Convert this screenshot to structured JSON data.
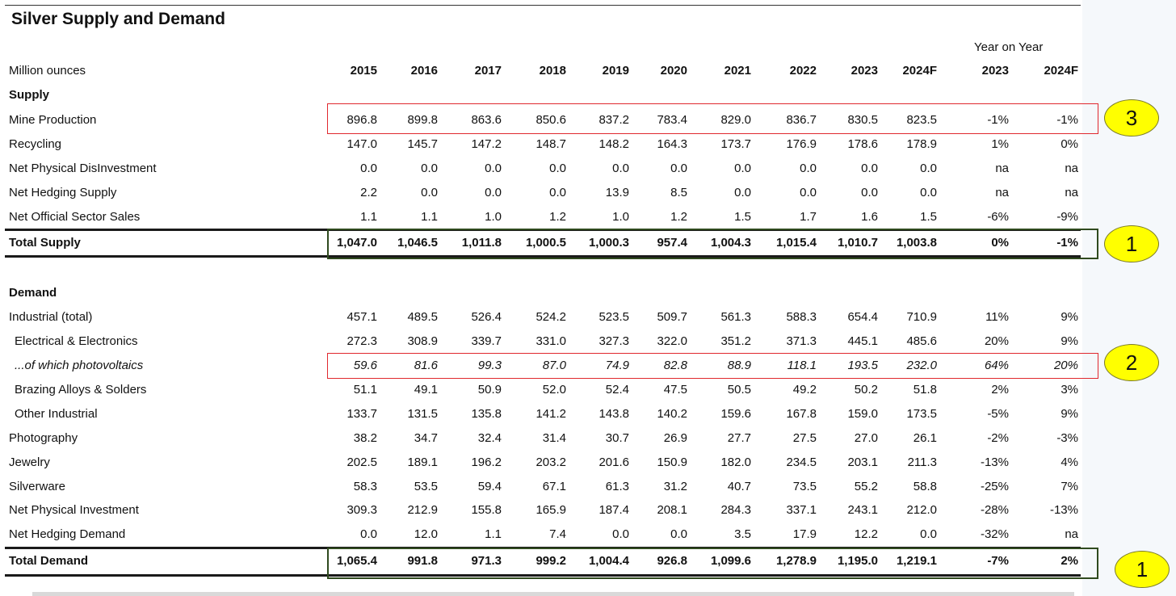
{
  "title": "Silver Supply and Demand",
  "yoy_label": "Year on Year",
  "header": {
    "unit": "Million ounces",
    "years": [
      "2015",
      "2016",
      "2017",
      "2018",
      "2019",
      "2020",
      "2021",
      "2022",
      "2023",
      "2024F"
    ],
    "yoy": [
      "2023",
      "2024F"
    ]
  },
  "sections": {
    "supply": "Supply",
    "demand": "Demand"
  },
  "rows": {
    "mine_production": {
      "label": "Mine Production",
      "values": [
        "896.8",
        "899.8",
        "863.6",
        "850.6",
        "837.2",
        "783.4",
        "829.0",
        "836.7",
        "830.5",
        "823.5"
      ],
      "yoy": [
        "-1%",
        "-1%"
      ]
    },
    "recycling": {
      "label": "Recycling",
      "values": [
        "147.0",
        "145.7",
        "147.2",
        "148.7",
        "148.2",
        "164.3",
        "173.7",
        "176.9",
        "178.6",
        "178.9"
      ],
      "yoy": [
        "1%",
        "0%"
      ]
    },
    "net_physical_disinvestment": {
      "label": "Net Physical DisInvestment",
      "values": [
        "0.0",
        "0.0",
        "0.0",
        "0.0",
        "0.0",
        "0.0",
        "0.0",
        "0.0",
        "0.0",
        "0.0"
      ],
      "yoy": [
        "na",
        "na"
      ]
    },
    "net_hedging_supply": {
      "label": "Net Hedging Supply",
      "values": [
        "2.2",
        "0.0",
        "0.0",
        "0.0",
        "13.9",
        "8.5",
        "0.0",
        "0.0",
        "0.0",
        "0.0"
      ],
      "yoy": [
        "na",
        "na"
      ]
    },
    "net_official_sector_sales": {
      "label": "Net Official Sector Sales",
      "values": [
        "1.1",
        "1.1",
        "1.0",
        "1.2",
        "1.0",
        "1.2",
        "1.5",
        "1.7",
        "1.6",
        "1.5"
      ],
      "yoy": [
        "-6%",
        "-9%"
      ]
    },
    "total_supply": {
      "label": "Total Supply",
      "values": [
        "1,047.0",
        "1,046.5",
        "1,011.8",
        "1,000.5",
        "1,000.3",
        "957.4",
        "1,004.3",
        "1,015.4",
        "1,010.7",
        "1,003.8"
      ],
      "yoy": [
        "0%",
        "-1%"
      ]
    },
    "industrial_total": {
      "label": "Industrial (total)",
      "values": [
        "457.1",
        "489.5",
        "526.4",
        "524.2",
        "523.5",
        "509.7",
        "561.3",
        "588.3",
        "654.4",
        "710.9"
      ],
      "yoy": [
        "11%",
        "9%"
      ]
    },
    "electrical_electronics": {
      "label": "Electrical & Electronics",
      "values": [
        "272.3",
        "308.9",
        "339.7",
        "331.0",
        "327.3",
        "322.0",
        "351.2",
        "371.3",
        "445.1",
        "485.6"
      ],
      "yoy": [
        "20%",
        "9%"
      ]
    },
    "photovoltaics": {
      "label": "...of which photovoltaics",
      "values": [
        "59.6",
        "81.6",
        "99.3",
        "87.0",
        "74.9",
        "82.8",
        "88.9",
        "118.1",
        "193.5",
        "232.0"
      ],
      "yoy": [
        "64%",
        "20%"
      ]
    },
    "brazing_alloys": {
      "label": "Brazing Alloys & Solders",
      "values": [
        "51.1",
        "49.1",
        "50.9",
        "52.0",
        "52.4",
        "47.5",
        "50.5",
        "49.2",
        "50.2",
        "51.8"
      ],
      "yoy": [
        "2%",
        "3%"
      ]
    },
    "other_industrial": {
      "label": "Other Industrial",
      "values": [
        "133.7",
        "131.5",
        "135.8",
        "141.2",
        "143.8",
        "140.2",
        "159.6",
        "167.8",
        "159.0",
        "173.5"
      ],
      "yoy": [
        "-5%",
        "9%"
      ]
    },
    "photography": {
      "label": "Photography",
      "values": [
        "38.2",
        "34.7",
        "32.4",
        "31.4",
        "30.7",
        "26.9",
        "27.7",
        "27.5",
        "27.0",
        "26.1"
      ],
      "yoy": [
        "-2%",
        "-3%"
      ]
    },
    "jewelry": {
      "label": "Jewelry",
      "values": [
        "202.5",
        "189.1",
        "196.2",
        "203.2",
        "201.6",
        "150.9",
        "182.0",
        "234.5",
        "203.1",
        "211.3"
      ],
      "yoy": [
        "-13%",
        "4%"
      ]
    },
    "silverware": {
      "label": "Silverware",
      "values": [
        "58.3",
        "53.5",
        "59.4",
        "67.1",
        "61.3",
        "31.2",
        "40.7",
        "73.5",
        "55.2",
        "58.8"
      ],
      "yoy": [
        "-25%",
        "7%"
      ]
    },
    "net_physical_investment": {
      "label": "Net Physical Investment",
      "values": [
        "309.3",
        "212.9",
        "155.8",
        "165.9",
        "187.4",
        "208.1",
        "284.3",
        "337.1",
        "243.1",
        "212.0"
      ],
      "yoy": [
        "-28%",
        "-13%"
      ]
    },
    "net_hedging_demand": {
      "label": "Net Hedging Demand",
      "values": [
        "0.0",
        "12.0",
        "1.1",
        "7.4",
        "0.0",
        "0.0",
        "3.5",
        "17.9",
        "12.2",
        "0.0"
      ],
      "yoy": [
        "-32%",
        "na"
      ]
    },
    "total_demand": {
      "label": "Total Demand",
      "values": [
        "1,065.4",
        "991.8",
        "971.3",
        "999.2",
        "1,004.4",
        "926.8",
        "1,099.6",
        "1,278.9",
        "1,195.0",
        "1,219.1"
      ],
      "yoy": [
        "-7%",
        "2%"
      ]
    }
  },
  "badges": {
    "supply_total": "1",
    "photovoltaics": "2",
    "mine_production": "3",
    "demand_total": "1"
  },
  "colors": {
    "highlight_red": "#e0282e",
    "highlight_green": "#2f4a1e",
    "badge_yellow": "#ffff00"
  }
}
